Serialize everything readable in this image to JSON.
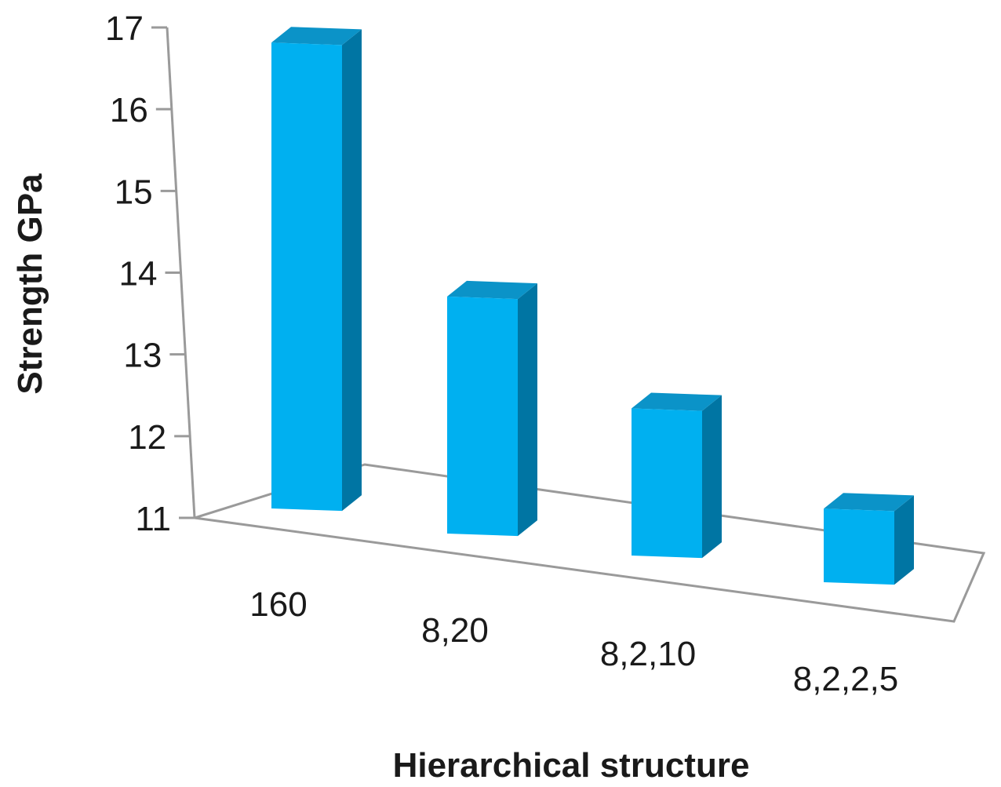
{
  "chart_data": {
    "type": "bar",
    "three_d": true,
    "categories": [
      "160",
      "8,20",
      "8,2,10",
      "8,2,2,5"
    ],
    "values": [
      16.7,
      13.9,
      12.8,
      11.9
    ],
    "xlabel": "Hierarchical structure",
    "ylabel": "Strength  GPa",
    "ylim": [
      11,
      17
    ],
    "yticks": [
      "11",
      "12",
      "13",
      "14",
      "15",
      "16",
      "17"
    ],
    "grid": false,
    "legend": "none",
    "colors": {
      "bar_front": "#00b0f0",
      "bar_side": "#0075a3",
      "bar_top": "#0b93c8",
      "axis": "#9a9a9a"
    }
  }
}
